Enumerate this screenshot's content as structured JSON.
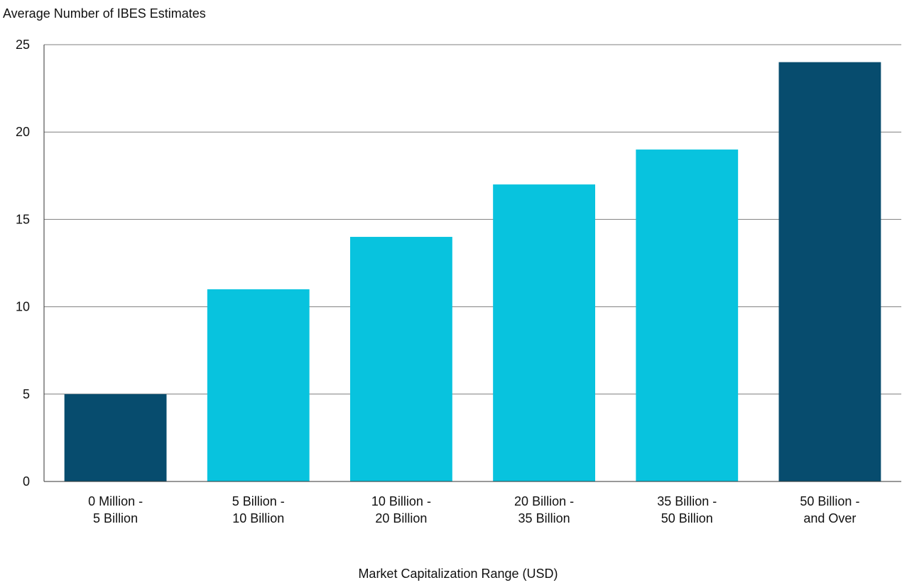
{
  "chart_data": {
    "type": "bar",
    "ylabel": "Average Number of IBES Estimates",
    "xlabel": "Market Capitalization Range (USD)",
    "ylim": [
      0,
      25
    ],
    "yticks": [
      0,
      5,
      10,
      15,
      20,
      25
    ],
    "grid": true,
    "categories": [
      [
        "0 Million -",
        "5 Billion"
      ],
      [
        "5 Billion -",
        "10 Billion"
      ],
      [
        "10 Billion -",
        "20 Billion"
      ],
      [
        "20 Billion -",
        "35 Billion"
      ],
      [
        "35 Billion -",
        "50 Billion"
      ],
      [
        "50 Billion -",
        "and Over"
      ]
    ],
    "values": [
      5,
      11,
      14,
      17,
      19,
      24
    ],
    "bar_colors": [
      "#074c6e",
      "#08c3de",
      "#08c3de",
      "#08c3de",
      "#08c3de",
      "#074c6e"
    ],
    "colors": {
      "dark": "#074c6e",
      "light": "#08c3de",
      "gridline": "#7f7f7f",
      "axis": "#333333"
    }
  }
}
